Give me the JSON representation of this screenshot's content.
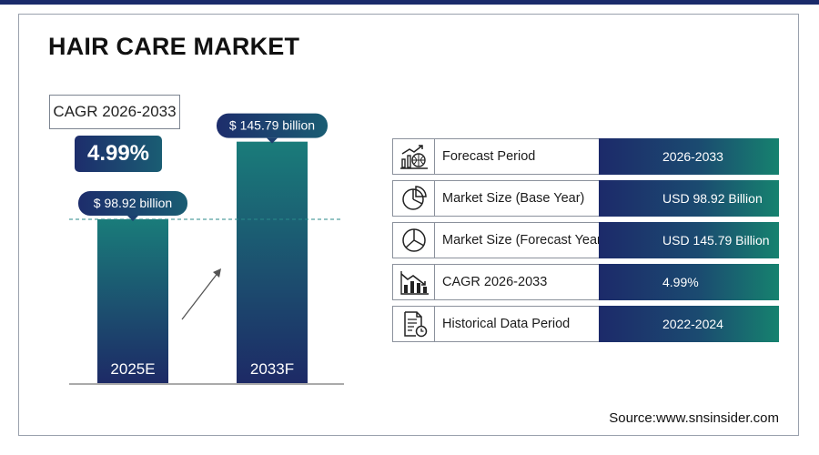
{
  "title": "HAIR CARE MARKET",
  "cagr": {
    "label": "CAGR 2026-2033",
    "value": "4.99%"
  },
  "colors": {
    "navy": "#1b2b6b",
    "teal": "#16826f",
    "bar_top": "#1a7c7a",
    "bar_bottom": "#1d2a66",
    "dashed_line": "#2a8a8a"
  },
  "chart_data": {
    "type": "bar",
    "categories": [
      "2025E",
      "2033F"
    ],
    "values": [
      98.92,
      145.79
    ],
    "data_labels": [
      "$ 98.92 billion",
      "$ 145.79 billion"
    ],
    "ylim": [
      0,
      150
    ],
    "grid": false
  },
  "stats": [
    {
      "icon": "growth-chart-icon",
      "label": "Forecast Period",
      "value": "2026-2033"
    },
    {
      "icon": "pie-chart-icon",
      "label": "Market Size (Base Year)",
      "value": "USD 98.92 Billion"
    },
    {
      "icon": "pie-chart-icon",
      "label": "Market Size (Forecast Year)",
      "value": "USD 145.79 Billion"
    },
    {
      "icon": "bar-chart-trend-icon",
      "label": "CAGR 2026-2033",
      "value": "4.99%"
    },
    {
      "icon": "document-clock-icon",
      "label": "Historical Data Period",
      "value": "2022-2024"
    }
  ],
  "source": "Source:www.snsinsider.com"
}
